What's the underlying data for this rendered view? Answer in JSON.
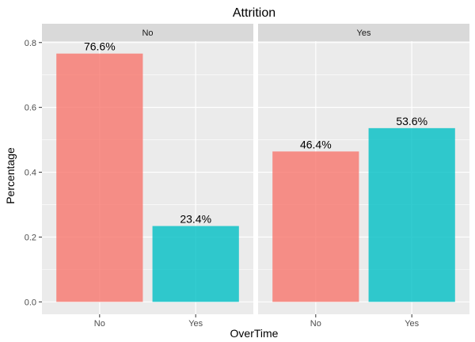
{
  "chart_data": {
    "type": "bar",
    "title": "Attrition",
    "xlabel": "OverTime",
    "ylabel": "Percentage",
    "ylim": [
      -0.0383,
      0.8043
    ],
    "yticks": [
      "0.0",
      "0.2",
      "0.4",
      "0.6",
      "0.8"
    ],
    "categories": [
      "No",
      "Yes"
    ],
    "colors": {
      "No": "#F8766D",
      "Yes": "#00BFC4"
    },
    "bar_opacity": 0.8,
    "grid": true,
    "panels": [
      {
        "facet": "No",
        "values": [
          0.766,
          0.234
        ],
        "labels": [
          "76.6%",
          "23.4%"
        ]
      },
      {
        "facet": "Yes",
        "values": [
          0.464,
          0.536
        ],
        "labels": [
          "46.4%",
          "53.6%"
        ]
      }
    ]
  }
}
